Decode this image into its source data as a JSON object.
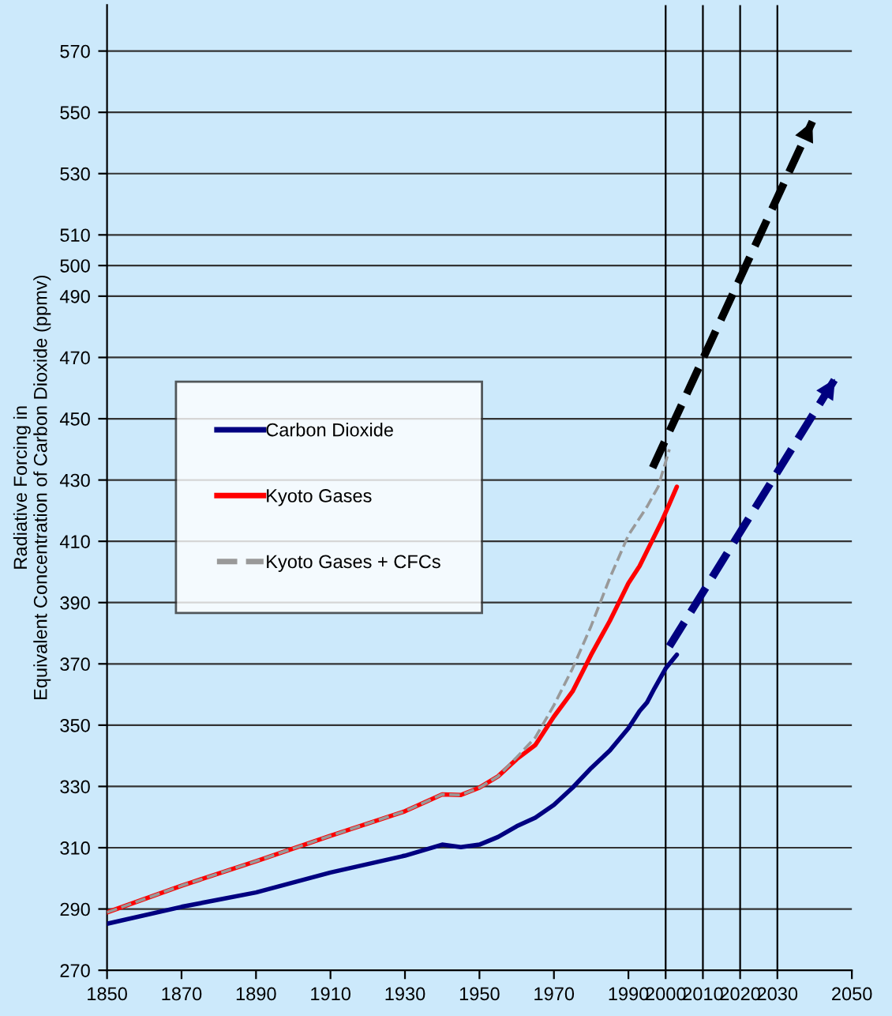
{
  "chart_data": {
    "type": "line",
    "ylabel": "Radiative Forcing in\nEquivalent Concentration of Carbon Dioxide (ppmv)",
    "xlim": [
      1850,
      2050
    ],
    "xticks": [
      1850,
      1870,
      1890,
      1910,
      1930,
      1950,
      1970,
      1990,
      2000,
      2010,
      2020,
      2030,
      2050
    ],
    "ylim": [
      270,
      585
    ],
    "yticks": [
      270,
      290,
      310,
      330,
      350,
      370,
      390,
      410,
      430,
      450,
      470,
      490,
      500,
      510,
      530,
      550,
      570
    ],
    "grid": "y",
    "legend": "left",
    "line_style": "solid",
    "marker": "none",
    "ref_lines": [
      {
        "axis": "x",
        "value": 2000,
        "color": "#000000"
      },
      {
        "axis": "x",
        "value": 2010,
        "color": "#000000"
      },
      {
        "axis": "x",
        "value": 2020,
        "color": "#000000"
      },
      {
        "axis": "x",
        "value": 2030,
        "color": "#000000"
      }
    ],
    "series": [
      {
        "name": "Carbon Dioxide",
        "color": "#000080",
        "x": [
          1850,
          1870,
          1890,
          1910,
          1930,
          1940,
          1945,
          1950,
          1955,
          1960,
          1965,
          1970,
          1975,
          1980,
          1985,
          1990,
          1993,
          1995,
          1997,
          2000,
          2003
        ],
        "values": [
          285.2,
          290.7,
          295.4,
          301.9,
          307.4,
          311,
          310.2,
          311,
          313.5,
          317,
          319.8,
          324,
          329.6,
          336,
          341.7,
          349,
          354.6,
          357.4,
          362,
          368.5,
          373
        ]
      },
      {
        "name": "Kyoto Gases",
        "color": "#ff0000",
        "x": [
          1850,
          1870,
          1890,
          1910,
          1930,
          1940,
          1945,
          1950,
          1955,
          1960,
          1965,
          1970,
          1975,
          1980,
          1985,
          1990,
          1993,
          1996,
          1999,
          2001,
          2003
        ],
        "values": [
          288.9,
          297.6,
          305.6,
          313.9,
          321.9,
          327.4,
          327.2,
          329.6,
          333.3,
          338.9,
          343.5,
          352.8,
          361,
          373,
          384,
          396.3,
          401.9,
          409.3,
          416.7,
          422.2,
          427.8
        ]
      },
      {
        "name": "Kyoto Gases + CFCs",
        "color": "#999999",
        "line_style": "dashed",
        "x": [
          1850,
          1870,
          1890,
          1910,
          1930,
          1940,
          1945,
          1950,
          1955,
          1960,
          1965,
          1970,
          1975,
          1980,
          1985,
          1990,
          1995,
          1998,
          2001
        ],
        "values": [
          288.9,
          297.6,
          305.6,
          313.9,
          321.9,
          327.4,
          327.2,
          329.6,
          333.3,
          339.5,
          346,
          356.5,
          368.5,
          382.4,
          398,
          412,
          421.3,
          427.8,
          440
        ]
      },
      {
        "color": "#000000",
        "line_style": "dashed",
        "x": [
          1996.5,
          2039.4
        ],
        "values": [
          434,
          547
        ]
      },
      {
        "color": "#000080",
        "line_style": "dashed",
        "x": [
          2001,
          2045.5
        ],
        "values": [
          375.7,
          463
        ]
      }
    ]
  }
}
